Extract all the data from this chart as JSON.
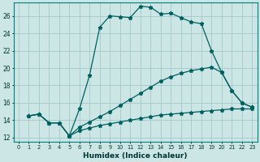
{
  "xlabel": "Humidex (Indice chaleur)",
  "bg_color": "#cce5e5",
  "grid_color": "#aacccc",
  "line_color": "#006060",
  "xlim": [
    -0.5,
    23.5
  ],
  "ylim": [
    11.5,
    27.5
  ],
  "xticks": [
    0,
    1,
    2,
    3,
    4,
    5,
    6,
    7,
    8,
    9,
    10,
    11,
    12,
    13,
    14,
    15,
    16,
    17,
    18,
    19,
    20,
    21,
    22,
    23
  ],
  "yticks": [
    12,
    14,
    16,
    18,
    20,
    22,
    24,
    26
  ],
  "line1_x": [
    1,
    2,
    3,
    4,
    5,
    6,
    7,
    8,
    9,
    10,
    11,
    12,
    13,
    14,
    15,
    16,
    17,
    18,
    19,
    20,
    21,
    22,
    23
  ],
  "line1_y": [
    14.5,
    14.7,
    13.7,
    13.7,
    12.2,
    15.3,
    19.2,
    24.7,
    26.0,
    25.9,
    25.8,
    27.1,
    27.0,
    26.2,
    26.3,
    25.8,
    25.3,
    25.1,
    22.0,
    19.5,
    17.4,
    16.0,
    15.5
  ],
  "line2_x": [
    1,
    2,
    3,
    4,
    5,
    6,
    7,
    8,
    9,
    10,
    11,
    12,
    13,
    14,
    15,
    16,
    17,
    18,
    19,
    20,
    21,
    22,
    23
  ],
  "line2_y": [
    14.5,
    14.7,
    13.7,
    13.7,
    12.2,
    13.2,
    13.8,
    14.4,
    15.0,
    15.7,
    16.4,
    17.1,
    17.8,
    18.5,
    19.0,
    19.4,
    19.7,
    19.9,
    20.1,
    19.5,
    17.4,
    16.0,
    15.5
  ],
  "line3_x": [
    1,
    2,
    3,
    4,
    5,
    6,
    7,
    8,
    9,
    10,
    11,
    12,
    13,
    14,
    15,
    16,
    17,
    18,
    19,
    20,
    21,
    22,
    23
  ],
  "line3_y": [
    14.5,
    14.7,
    13.7,
    13.7,
    12.2,
    12.8,
    13.1,
    13.4,
    13.6,
    13.8,
    14.0,
    14.2,
    14.4,
    14.6,
    14.7,
    14.8,
    14.9,
    15.0,
    15.1,
    15.2,
    15.3,
    15.3,
    15.3
  ]
}
